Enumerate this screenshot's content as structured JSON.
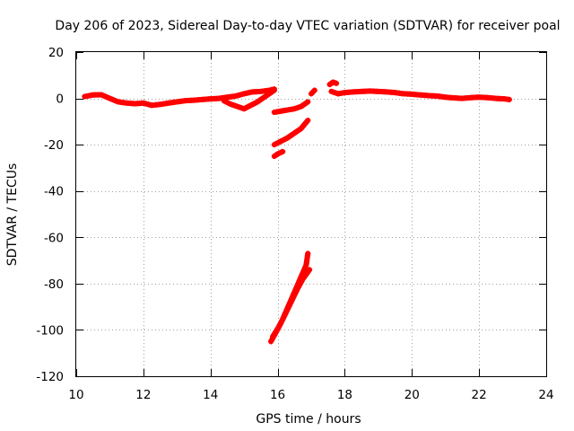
{
  "chart_data": {
    "type": "scatter",
    "title": "Day 206 of 2023, Sidereal Day-to-day VTEC variation (SDTVAR) for receiver poal",
    "xlabel": "GPS time / hours",
    "ylabel": "SDTVAR / TECUs",
    "xlim": [
      10,
      24
    ],
    "ylim": [
      -120,
      20
    ],
    "xticks": [
      10,
      12,
      14,
      16,
      18,
      20,
      22,
      24
    ],
    "yticks": [
      -120,
      -100,
      -80,
      -60,
      -40,
      -20,
      0,
      20
    ],
    "grid": true,
    "series": [
      {
        "name": "SDTVAR",
        "color": "#ff0000",
        "marker": "plus",
        "segments": [
          {
            "x": [
              10.25,
              10.5,
              10.75,
              11.0,
              11.25,
              11.5,
              11.75,
              12.0,
              12.25,
              12.5,
              12.75,
              13.0,
              13.25,
              13.5,
              13.75,
              14.0,
              14.25,
              14.5,
              14.75,
              15.0,
              15.25,
              15.5,
              15.75,
              15.9
            ],
            "y": [
              0.8,
              1.5,
              1.6,
              0.0,
              -1.5,
              -2.0,
              -2.3,
              -2.0,
              -3.0,
              -2.6,
              -2.0,
              -1.5,
              -1.0,
              -0.8,
              -0.5,
              -0.2,
              0.0,
              0.5,
              1.0,
              2.0,
              2.8,
              3.0,
              3.5,
              4.0
            ]
          },
          {
            "x": [
              14.4,
              14.6,
              14.8,
              15.0,
              15.2,
              15.4,
              15.6,
              15.8,
              15.9
            ],
            "y": [
              -1.0,
              -2.5,
              -3.5,
              -4.5,
              -3.0,
              -1.5,
              0.5,
              2.5,
              3.5
            ]
          },
          {
            "x": [
              15.9,
              16.1,
              16.3,
              16.5,
              16.7,
              16.9
            ],
            "y": [
              -6.0,
              -5.5,
              -5.0,
              -4.5,
              -3.5,
              -1.5
            ]
          },
          {
            "x": [
              15.9,
              16.1,
              16.3,
              16.5,
              16.7,
              16.9
            ],
            "y": [
              -20.0,
              -18.5,
              -17.0,
              -15.0,
              -13.0,
              -9.5
            ]
          },
          {
            "x": [
              15.9,
              16.0,
              16.15
            ],
            "y": [
              -25.0,
              -24.0,
              -23.0
            ]
          },
          {
            "x": [
              15.8,
              15.95,
              16.1,
              16.25,
              16.4,
              16.55,
              16.7,
              16.85,
              16.9
            ],
            "y": [
              -105.0,
              -101.0,
              -97.0,
              -92.0,
              -87.0,
              -82.0,
              -77.0,
              -72.0,
              -67.0
            ]
          },
          {
            "x": [
              15.85,
              16.0,
              16.15,
              16.3,
              16.45,
              16.6,
              16.75,
              16.95
            ],
            "y": [
              -103.0,
              -99.5,
              -95.5,
              -91.0,
              -86.5,
              -82.0,
              -78.0,
              -74.0
            ]
          },
          {
            "x": [
              17.0,
              17.1
            ],
            "y": [
              2.0,
              3.5
            ]
          },
          {
            "x": [
              17.55,
              17.65,
              17.75
            ],
            "y": [
              6.0,
              7.0,
              6.5
            ]
          },
          {
            "x": [
              17.6,
              17.8,
              18.0,
              18.25,
              18.5,
              18.75,
              19.0,
              19.25,
              19.5,
              19.75,
              20.0,
              20.25,
              20.5,
              20.75,
              21.0,
              21.25,
              21.5,
              21.75,
              22.0,
              22.25,
              22.5,
              22.75,
              22.9
            ],
            "y": [
              3.0,
              2.0,
              2.5,
              2.8,
              3.0,
              3.2,
              3.0,
              2.8,
              2.5,
              2.0,
              1.8,
              1.5,
              1.2,
              1.0,
              0.5,
              0.2,
              0.0,
              0.3,
              0.5,
              0.3,
              0.0,
              -0.2,
              -0.5
            ]
          }
        ]
      }
    ]
  }
}
